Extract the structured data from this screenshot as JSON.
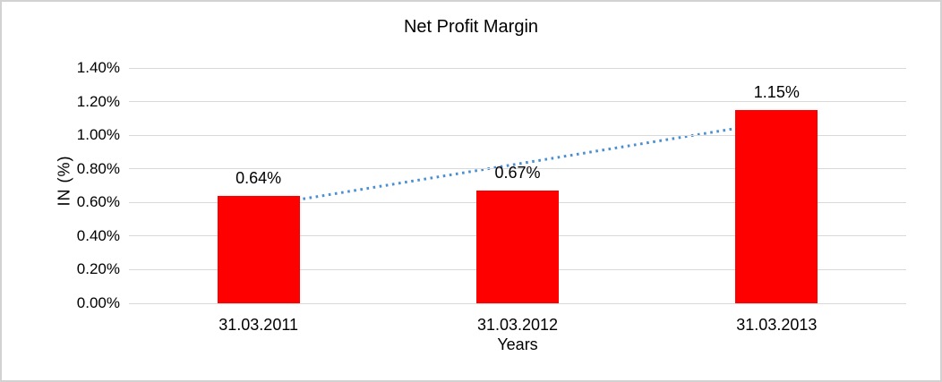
{
  "chart_data": {
    "type": "bar",
    "title": "Net Profit Margin",
    "xlabel": "Years",
    "ylabel": "IN (%)",
    "categories": [
      "31.03.2011",
      "31.03.2012",
      "31.03.2013"
    ],
    "values": [
      0.64,
      0.67,
      1.15
    ],
    "data_labels": [
      "0.64%",
      "0.67%",
      "1.15%"
    ],
    "ylim": [
      0,
      1.4
    ],
    "yticks": [
      {
        "label": "1.40%",
        "value": 1.4
      },
      {
        "label": "1.20%",
        "value": 1.2
      },
      {
        "label": "1.00%",
        "value": 1.0
      },
      {
        "label": "0.80%",
        "value": 0.8
      },
      {
        "label": "0.60%",
        "value": 0.6
      },
      {
        "label": "0.40%",
        "value": 0.4
      },
      {
        "label": "0.20%",
        "value": 0.2
      },
      {
        "label": "0.00%",
        "value": 0.0
      }
    ],
    "grid": true,
    "legend": "none",
    "bar_color": "#ff0000",
    "gridline_color": "#d9d9d9",
    "trendline": {
      "style": "dotted",
      "color": "#4a8fd2",
      "from_category_index": 0,
      "to_category_index": 2,
      "start_value": 0.578,
      "end_value": 1.08
    }
  }
}
